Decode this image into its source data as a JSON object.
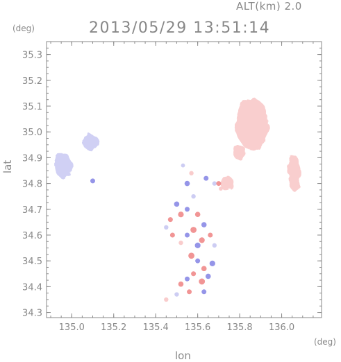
{
  "header": {
    "altitude_label": "ALT(km) 2.0",
    "timestamp": "2013/05/29 13:51:14"
  },
  "chart_data": {
    "type": "scatter",
    "title": "2013/05/29 13:51:14",
    "xlabel": "lon",
    "ylabel": "lat",
    "xunit": "(deg)",
    "yunit": "(deg)",
    "xlim": [
      134.88,
      136.19
    ],
    "ylim": [
      34.28,
      35.35
    ],
    "xticks": [
      135.0,
      135.2,
      135.4,
      135.6,
      135.8,
      136.0
    ],
    "xtick_labels": [
      "135.0",
      "135.2",
      "135.4",
      "135.6",
      "135.8",
      "136.0"
    ],
    "yticks": [
      34.3,
      34.4,
      34.5,
      34.6,
      34.7,
      34.8,
      34.9,
      35.0,
      35.1,
      35.2,
      35.3
    ],
    "ytick_labels": [
      "34.3",
      "34.4",
      "34.5",
      "34.6",
      "34.7",
      "34.8",
      "34.9",
      "35.0",
      "35.1",
      "35.2",
      "35.3"
    ],
    "grid": false,
    "colors": {
      "positive": "#f08a8a",
      "positive_light": "#f8c6c6",
      "negative": "#8a8ae6",
      "negative_light": "#c8c8f2",
      "axis": "#888888"
    },
    "regions": [
      {
        "name": "north-east-echo",
        "lon": 135.86,
        "lat": 35.03,
        "rlon": 0.08,
        "rlat": 0.1,
        "value": 0.4
      },
      {
        "name": "north-east-echo-tail",
        "lon": 135.8,
        "lat": 34.92,
        "rlon": 0.03,
        "rlat": 0.03,
        "value": 0.35
      },
      {
        "name": "east-echo",
        "lon": 136.06,
        "lat": 34.84,
        "rlon": 0.03,
        "rlat": 0.07,
        "value": 0.35
      },
      {
        "name": "mid-east-echo",
        "lon": 135.74,
        "lat": 34.8,
        "rlon": 0.03,
        "rlat": 0.03,
        "value": 0.2
      },
      {
        "name": "north-west-echo",
        "lon": 134.96,
        "lat": 34.87,
        "rlon": 0.04,
        "rlat": 0.05,
        "value": -0.35
      },
      {
        "name": "north-west-echo-2",
        "lon": 135.09,
        "lat": 34.96,
        "rlon": 0.04,
        "rlat": 0.03,
        "value": -0.25
      }
    ],
    "points": [
      {
        "lon": 135.5,
        "lat": 34.72,
        "value": -0.6
      },
      {
        "lon": 135.52,
        "lat": 34.68,
        "value": 0.7
      },
      {
        "lon": 135.55,
        "lat": 34.7,
        "value": -0.5
      },
      {
        "lon": 135.47,
        "lat": 34.66,
        "value": 0.5
      },
      {
        "lon": 135.58,
        "lat": 34.75,
        "value": -0.4
      },
      {
        "lon": 135.6,
        "lat": 34.68,
        "value": 0.6
      },
      {
        "lon": 135.63,
        "lat": 34.64,
        "value": -0.6
      },
      {
        "lon": 135.58,
        "lat": 34.62,
        "value": 0.8
      },
      {
        "lon": 135.55,
        "lat": 34.6,
        "value": -0.5
      },
      {
        "lon": 135.62,
        "lat": 34.58,
        "value": 0.7
      },
      {
        "lon": 135.66,
        "lat": 34.6,
        "value": 0.5
      },
      {
        "lon": 135.6,
        "lat": 34.56,
        "value": -0.7
      },
      {
        "lon": 135.52,
        "lat": 34.57,
        "value": 0.4
      },
      {
        "lon": 135.57,
        "lat": 34.52,
        "value": 0.8
      },
      {
        "lon": 135.6,
        "lat": 34.5,
        "value": -0.5
      },
      {
        "lon": 135.63,
        "lat": 34.47,
        "value": 0.6
      },
      {
        "lon": 135.67,
        "lat": 34.49,
        "value": -0.7
      },
      {
        "lon": 135.58,
        "lat": 34.45,
        "value": 0.5
      },
      {
        "lon": 135.62,
        "lat": 34.42,
        "value": 0.8
      },
      {
        "lon": 135.55,
        "lat": 34.43,
        "value": -0.5
      },
      {
        "lon": 135.52,
        "lat": 34.41,
        "value": 0.6
      },
      {
        "lon": 135.65,
        "lat": 34.44,
        "value": -0.6
      },
      {
        "lon": 135.5,
        "lat": 34.37,
        "value": -0.4
      },
      {
        "lon": 135.56,
        "lat": 34.38,
        "value": 0.5
      },
      {
        "lon": 135.45,
        "lat": 34.35,
        "value": 0.4
      },
      {
        "lon": 135.63,
        "lat": 34.38,
        "value": -0.5
      },
      {
        "lon": 135.55,
        "lat": 34.8,
        "value": -0.6
      },
      {
        "lon": 135.57,
        "lat": 34.84,
        "value": 0.4
      },
      {
        "lon": 135.64,
        "lat": 34.82,
        "value": -0.5
      },
      {
        "lon": 135.68,
        "lat": 34.8,
        "value": -0.4
      },
      {
        "lon": 135.71,
        "lat": 34.78,
        "value": 0.3
      },
      {
        "lon": 135.53,
        "lat": 34.87,
        "value": -0.3
      },
      {
        "lon": 135.45,
        "lat": 34.63,
        "value": -0.4
      },
      {
        "lon": 135.48,
        "lat": 34.6,
        "value": 0.5
      },
      {
        "lon": 135.1,
        "lat": 34.81,
        "value": -0.5
      },
      {
        "lon": 135.68,
        "lat": 34.56,
        "value": -0.4
      },
      {
        "lon": 135.7,
        "lat": 34.8,
        "value": 0.5
      }
    ]
  }
}
